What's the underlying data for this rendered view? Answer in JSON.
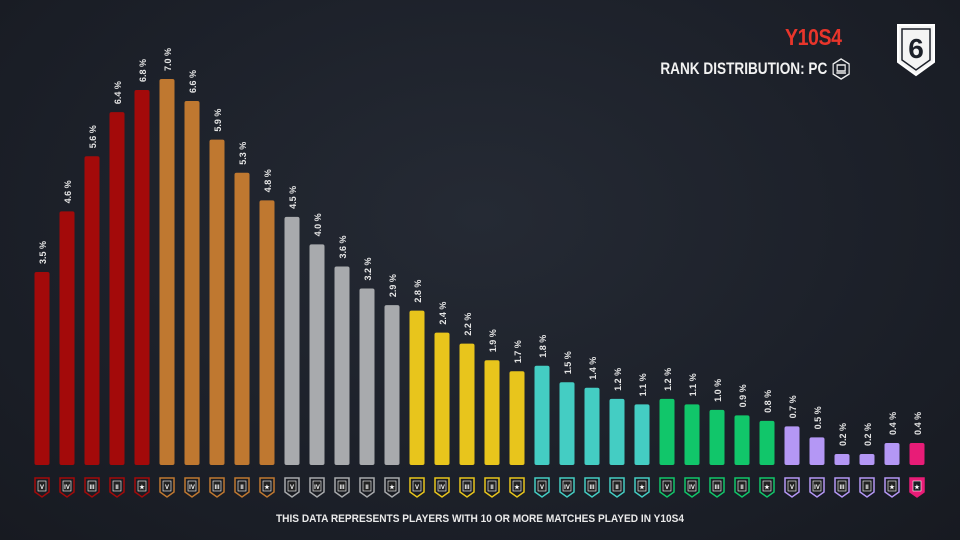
{
  "header": {
    "season": "Y10S4",
    "subtitle": "RANK DISTRIBUTION: PC",
    "platform_icon": "pc-monitor-icon",
    "logo_text": "6"
  },
  "footer": {
    "note": "THIS DATA REPRESENTS PLAYERS WITH 10 OR MORE MATCHES PLAYED IN Y10S4"
  },
  "tier_colors": {
    "Copper": "#a30a0a",
    "Bronze": "#bf7830",
    "Silver": "#a8aaad",
    "Gold": "#e8c51c",
    "Platinum": "#44cdc3",
    "Emerald": "#11c66a",
    "Diamond": "#b497f5",
    "Champion": "#e81c77"
  },
  "chart_data": {
    "type": "bar",
    "title": "Y10S4 RANK DISTRIBUTION: PC",
    "xlabel": "",
    "ylabel": "",
    "ylim": [
      0,
      7.0
    ],
    "grid": false,
    "value_suffix": " %",
    "categories": [
      "Copper V",
      "Copper IV",
      "Copper III",
      "Copper II",
      "Copper I",
      "Bronze V",
      "Bronze IV",
      "Bronze III",
      "Bronze II",
      "Bronze I",
      "Silver V",
      "Silver IV",
      "Silver III",
      "Silver II",
      "Silver I",
      "Gold V",
      "Gold IV",
      "Gold III",
      "Gold II",
      "Gold I",
      "Platinum V",
      "Platinum IV",
      "Platinum III",
      "Platinum II",
      "Platinum I",
      "Emerald V",
      "Emerald IV",
      "Emerald III",
      "Emerald II",
      "Emerald I",
      "Diamond V",
      "Diamond IV",
      "Diamond III",
      "Diamond II",
      "Diamond I",
      "Champion"
    ],
    "badges": [
      "V",
      "IV",
      "III",
      "II",
      "★",
      "V",
      "IV",
      "III",
      "II",
      "★",
      "V",
      "IV",
      "III",
      "II",
      "★",
      "V",
      "IV",
      "III",
      "II",
      "★",
      "V",
      "IV",
      "III",
      "II",
      "★",
      "V",
      "IV",
      "III",
      "II",
      "★",
      "V",
      "IV",
      "III",
      "II",
      "★",
      "★"
    ],
    "values": [
      3.5,
      4.6,
      5.6,
      6.4,
      6.8,
      7.0,
      6.6,
      5.9,
      5.3,
      4.8,
      4.5,
      4.0,
      3.6,
      3.2,
      2.9,
      2.8,
      2.4,
      2.2,
      1.9,
      1.7,
      1.8,
      1.5,
      1.4,
      1.2,
      1.1,
      1.2,
      1.1,
      1.0,
      0.9,
      0.8,
      0.7,
      0.5,
      0.2,
      0.2,
      0.4,
      0.4
    ]
  }
}
